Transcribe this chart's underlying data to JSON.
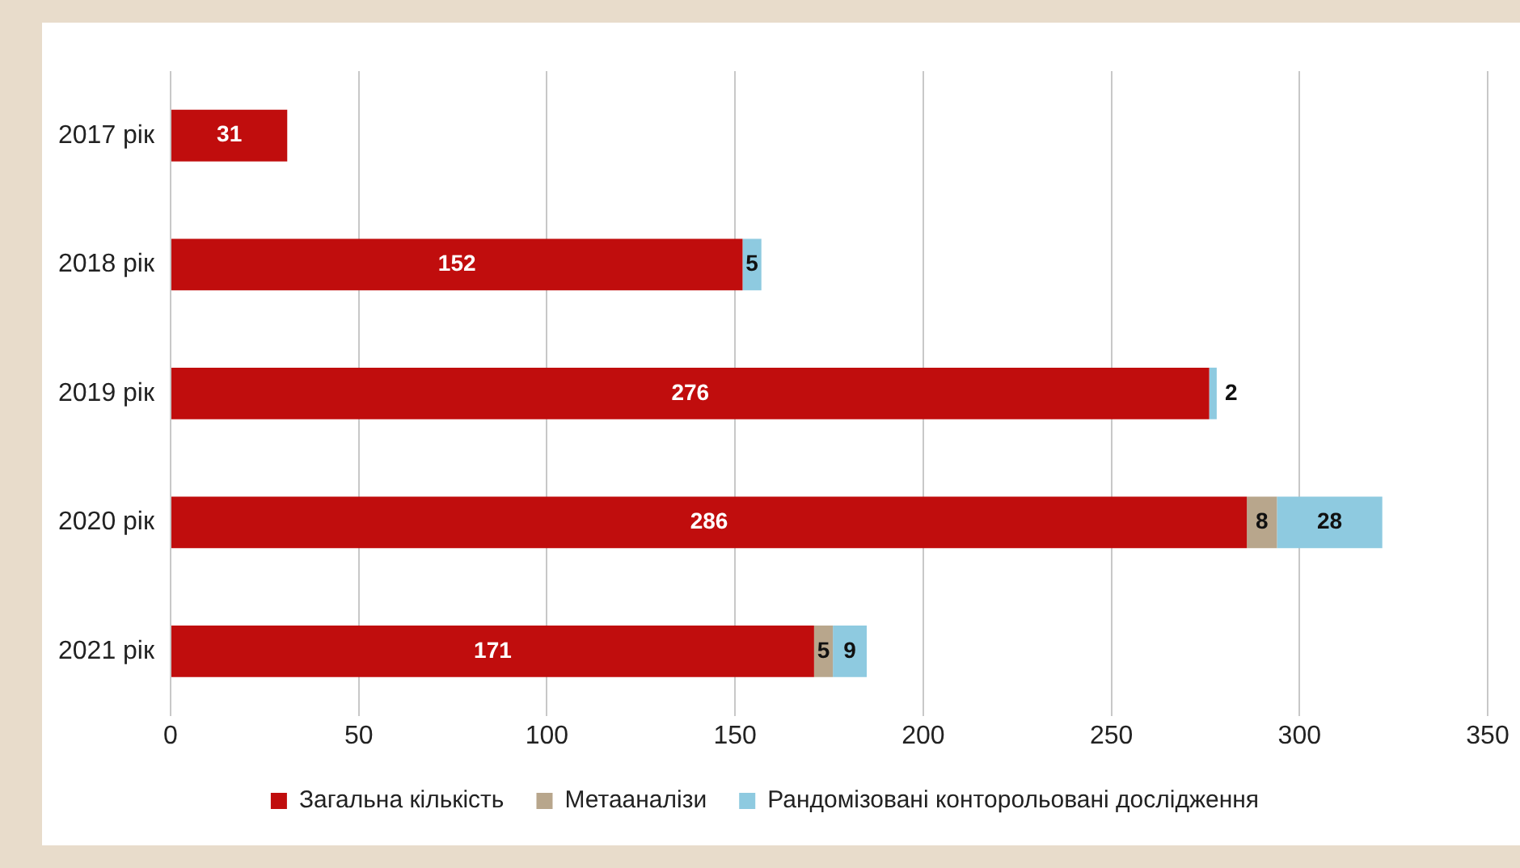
{
  "chart_data": {
    "type": "bar",
    "orientation": "horizontal",
    "stacked": true,
    "categories": [
      "2017 рік",
      "2018 рік",
      "2019 рік",
      "2020 рік",
      "2021 рік"
    ],
    "series": [
      {
        "name": "Загальна кількість",
        "color": "#c00d0d",
        "values": [
          31,
          152,
          276,
          286,
          171
        ]
      },
      {
        "name": "Метааналізи",
        "color": "#b8a68c",
        "values": [
          null,
          null,
          null,
          8,
          5
        ]
      },
      {
        "name": "Рандомізовані конторольовані дослідження",
        "color": "#8ecae0",
        "values": [
          null,
          5,
          2,
          28,
          9
        ]
      }
    ],
    "xlim": [
      0,
      350
    ],
    "xticks": [
      0,
      50,
      100,
      150,
      200,
      250,
      300,
      350
    ],
    "grid": "x",
    "legend": "bottom",
    "data_labels": true
  }
}
